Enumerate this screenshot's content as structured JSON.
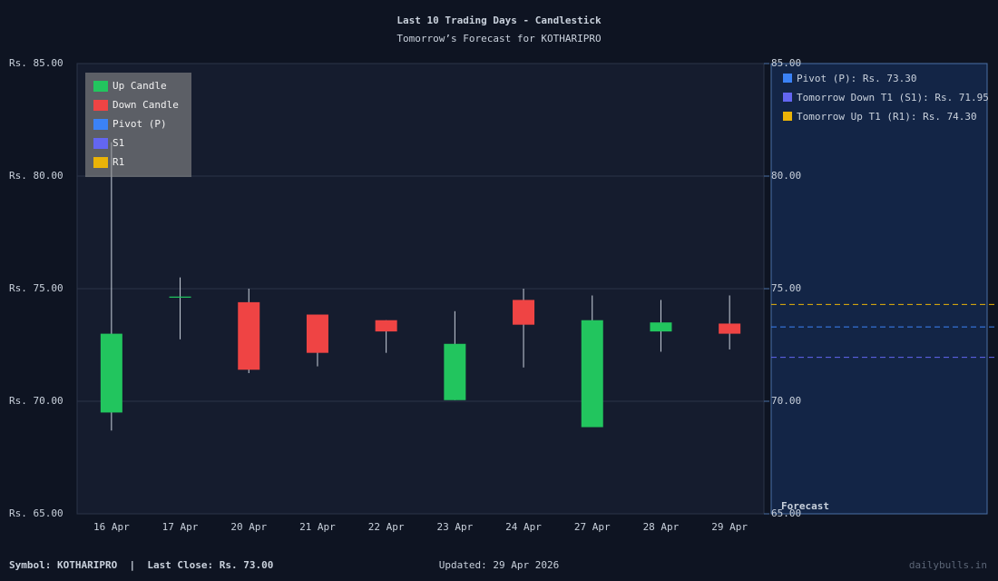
{
  "chart_data": {
    "type": "candlestick",
    "title": "Last 10 Trading Days - Candlestick",
    "subtitle": "Tomorrow’s Forecast for KOTHARIPRO",
    "categories": [
      "16 Apr",
      "17 Apr",
      "20 Apr",
      "21 Apr",
      "22 Apr",
      "23 Apr",
      "24 Apr",
      "27 Apr",
      "28 Apr",
      "29 Apr"
    ],
    "open": [
      69.5,
      74.6,
      74.4,
      73.85,
      73.6,
      70.05,
      74.5,
      68.85,
      73.1,
      73.45
    ],
    "high": [
      81.5,
      75.5,
      75.0,
      73.85,
      73.6,
      74.0,
      75.0,
      74.7,
      74.5,
      74.7
    ],
    "low": [
      68.7,
      72.75,
      71.25,
      71.55,
      72.15,
      70.05,
      71.5,
      68.85,
      72.2,
      72.3
    ],
    "close": [
      73.0,
      74.65,
      71.4,
      72.15,
      73.1,
      72.55,
      73.4,
      73.6,
      73.5,
      73.0
    ],
    "up_color": "#22c55e",
    "down_color": "#ef4444",
    "ylim": [
      65,
      85
    ],
    "yticks": [
      {
        "value": 65,
        "label": "Rs. 65.00"
      },
      {
        "value": 70,
        "label": "Rs. 70.00"
      },
      {
        "value": 75,
        "label": "Rs. 75.00"
      },
      {
        "value": 80,
        "label": "Rs. 80.00"
      },
      {
        "value": 85,
        "label": "Rs. 85.00"
      }
    ],
    "y2ticks": [
      {
        "value": 65,
        "label": "65.00"
      },
      {
        "value": 70,
        "label": "70.00"
      },
      {
        "value": 75,
        "label": "75.00"
      },
      {
        "value": 80,
        "label": "80.00"
      },
      {
        "value": 85,
        "label": "85.00"
      }
    ],
    "grid": true,
    "legend": [
      {
        "name": "Up Candle",
        "color": "#22c55e"
      },
      {
        "name": "Down Candle",
        "color": "#ef4444"
      },
      {
        "name": "Pivot (P)",
        "color": "#3b82f6"
      },
      {
        "name": "S1",
        "color": "#6366f1"
      },
      {
        "name": "R1",
        "color": "#eab308"
      }
    ],
    "forecast_title": "Forecast",
    "forecast": [
      {
        "value": 73.3,
        "label": "Pivot (P): Rs. 73.30",
        "color": "#3b82f6"
      },
      {
        "value": 71.95,
        "label": "Tomorrow Down T1 (S1): Rs. 71.95",
        "color": "#6366f1"
      },
      {
        "value": 74.3,
        "label": "Tomorrow Up T1 (R1): Rs. 74.30",
        "color": "#eab308"
      }
    ]
  },
  "footer": {
    "left": "Symbol: KOTHARIPRO  |  Last Close: Rs. 73.00",
    "center": "Updated: 29 Apr 2026",
    "right": "dailybulls.in"
  }
}
